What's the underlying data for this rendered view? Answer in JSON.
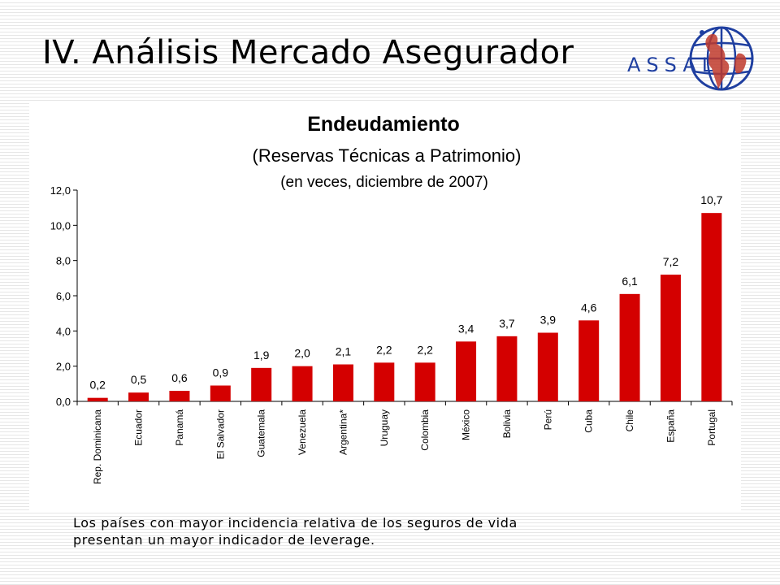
{
  "slide": {
    "title": "IV. Análisis Mercado Asegurador",
    "logo_text": "ASSAL",
    "caption_line1": "Los países con mayor incidencia relativa de los seguros de vida",
    "caption_line2": "presentan un mayor indicador de leverage."
  },
  "colors": {
    "bar": "#d40000",
    "logo": "#1f3fa0",
    "logo_map": "#c0392b"
  },
  "chart_data": {
    "type": "bar",
    "title": "Endeudamiento",
    "subtitle": "(Reservas Técnicas a Patrimonio)",
    "subtitle2": "(en veces, diciembre de 2007)",
    "xlabel": "",
    "ylabel": "",
    "ylim": [
      0,
      12
    ],
    "yticks": [
      "0,0",
      "2,0",
      "4,0",
      "6,0",
      "8,0",
      "10,0",
      "12,0"
    ],
    "categories": [
      "Rep. Dominicana",
      "Ecuador",
      "Panamá",
      "El Salvador",
      "Guatemala",
      "Venezuela",
      "Argentina*",
      "Uruguay",
      "Colombia",
      "México",
      "Bolivia",
      "Perú",
      "Cuba",
      "Chile",
      "España",
      "Portugal"
    ],
    "values": [
      0.2,
      0.5,
      0.6,
      0.9,
      1.9,
      2.0,
      2.1,
      2.2,
      2.2,
      3.4,
      3.7,
      3.9,
      4.6,
      6.1,
      7.2,
      10.7
    ],
    "data_labels": [
      "0,2",
      "0,5",
      "0,6",
      "0,9",
      "1,9",
      "2,0",
      "2,1",
      "2,2",
      "2,2",
      "3,4",
      "3,7",
      "3,9",
      "4,6",
      "6,1",
      "7,2",
      "10,7"
    ],
    "grid": false,
    "legend": "none"
  }
}
